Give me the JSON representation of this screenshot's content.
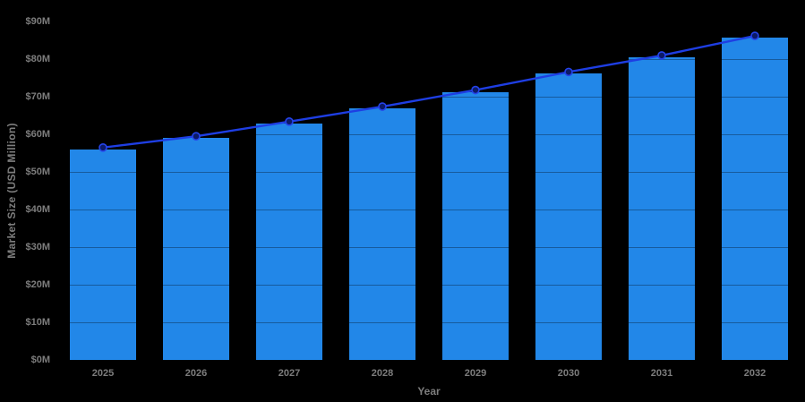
{
  "chart_data": {
    "type": "bar",
    "overlay": "line",
    "title": "",
    "xlabel": "Year",
    "ylabel": "Market Size (USD Million)",
    "categories": [
      "2025",
      "2026",
      "2027",
      "2028",
      "2029",
      "2030",
      "2031",
      "2032"
    ],
    "series": [
      {
        "name": "Market Size (USD Million) - bars",
        "type": "bar",
        "values": [
          56.0,
          59.0,
          62.9,
          66.9,
          71.3,
          76.1,
          80.5,
          85.7
        ]
      },
      {
        "name": "Market Size trend - line with circle markers",
        "type": "line",
        "values": [
          56.0,
          59.0,
          62.9,
          66.9,
          71.3,
          76.1,
          80.5,
          85.7
        ]
      }
    ],
    "ylim": [
      0,
      90
    ],
    "y_ticks": {
      "values": [
        0,
        10,
        20,
        30,
        40,
        50,
        60,
        70,
        80,
        90
      ],
      "labels": [
        "$0M",
        "$10M",
        "$20M",
        "$30M",
        "$40M",
        "$50M",
        "$60M",
        "$70M",
        "$80M",
        "$90M"
      ]
    },
    "x_ticks": [
      "2025",
      "2026",
      "2027",
      "2028",
      "2029",
      "2030",
      "2031",
      "2032"
    ],
    "legend": "none",
    "grid": "horizontal gridlines, visible only where they cross the bars (translucent dark over blue)"
  },
  "colors": {
    "background": "#000000",
    "bar_fill": "#2287e8",
    "trend_line": "#1e3ee3",
    "marker_fill": "#0c1a66",
    "marker_stroke": "#2543ea",
    "axis_text": "#7d7d7d",
    "gridline_over_bars": "rgba(0,0,0,0.32)"
  }
}
